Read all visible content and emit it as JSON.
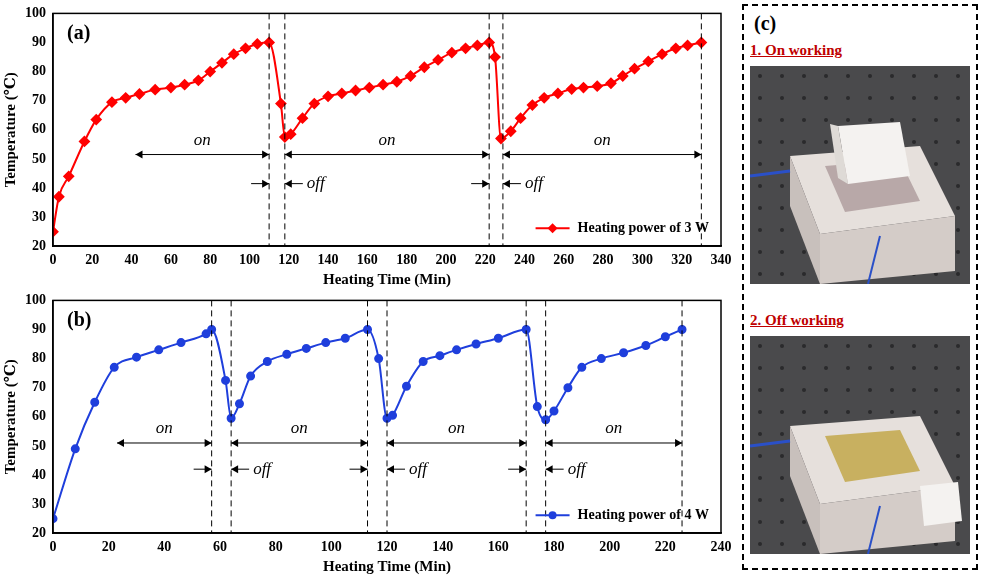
{
  "chart_data": [
    {
      "type": "line",
      "panel_label": "(a)",
      "xlabel": "Heating Time (Min)",
      "ylabel": "Temperature (℃)",
      "xlim": [
        0,
        340
      ],
      "xticks": [
        0,
        20,
        40,
        60,
        80,
        100,
        120,
        140,
        160,
        180,
        200,
        220,
        240,
        260,
        280,
        300,
        320,
        340
      ],
      "ylim": [
        20,
        100
      ],
      "yticks": [
        20,
        30,
        40,
        50,
        60,
        70,
        80,
        90,
        100
      ],
      "grid": false,
      "legend": "lower right",
      "x": [
        0,
        3,
        8,
        16,
        22,
        30,
        37,
        44,
        52,
        60,
        67,
        74,
        80,
        86,
        92,
        98,
        104,
        110,
        116,
        118,
        121,
        127,
        133,
        140,
        147,
        154,
        161,
        168,
        175,
        182,
        189,
        196,
        203,
        210,
        216,
        222,
        225,
        228,
        233,
        238,
        244,
        250,
        257,
        264,
        270,
        277,
        284,
        290,
        296,
        303,
        310,
        317,
        323,
        330
      ],
      "series": [
        {
          "name": "Heating power of 3 W",
          "color": "#ff0000",
          "marker": "diamond",
          "values": [
            25,
            37,
            44,
            56,
            63.5,
            69.5,
            71,
            72.3,
            73.8,
            74.5,
            75.5,
            77,
            80,
            83,
            86,
            88,
            89.5,
            90,
            69,
            57.5,
            58.5,
            64,
            69,
            71.5,
            72.5,
            73.5,
            74.5,
            75.5,
            76.5,
            78.5,
            81.5,
            84,
            86.5,
            88,
            89,
            90,
            85,
            57,
            59.5,
            64,
            68.5,
            71,
            72.5,
            74,
            74.5,
            75,
            76,
            78.5,
            81,
            83.5,
            86,
            88,
            89,
            90
          ]
        }
      ],
      "vlines": [
        110,
        118,
        222,
        229,
        330
      ],
      "annotations": [
        {
          "text": "on",
          "x0": 42,
          "x1": 110,
          "y": 51.5
        },
        {
          "text": "on",
          "x0": 118,
          "x1": 222,
          "y": 51.5
        },
        {
          "text": "on",
          "x0": 229,
          "x1": 330,
          "y": 51.5
        },
        {
          "text": "off",
          "x0": 110,
          "x1": 118,
          "y": 41.5
        },
        {
          "text": "off",
          "x0": 222,
          "x1": 229,
          "y": 41.5
        }
      ]
    },
    {
      "type": "line",
      "panel_label": "(b)",
      "xlabel": "Heating Time (Min)",
      "ylabel": "Temperature (℃)",
      "xlim": [
        0,
        240
      ],
      "xticks": [
        0,
        20,
        40,
        60,
        80,
        100,
        120,
        140,
        160,
        180,
        200,
        220,
        240
      ],
      "ylim": [
        20,
        100
      ],
      "yticks": [
        20,
        30,
        40,
        50,
        60,
        70,
        80,
        90,
        100
      ],
      "grid": false,
      "legend": "lower right",
      "x": [
        0,
        8,
        15,
        22,
        30,
        38,
        46,
        55,
        57,
        62,
        64,
        67,
        71,
        77,
        84,
        91,
        98,
        105,
        113,
        117,
        120,
        122,
        127,
        133,
        139,
        145,
        152,
        160,
        170,
        174,
        177,
        180,
        185,
        190,
        197,
        205,
        213,
        220,
        226
      ],
      "series": [
        {
          "name": "Heating power of 4 W",
          "color": "#1f3fdc",
          "marker": "circle",
          "values": [
            25,
            49,
            65,
            77,
            80.5,
            83,
            85.5,
            88.5,
            90,
            72.5,
            59.5,
            64.5,
            74,
            79,
            81.5,
            83.5,
            85.5,
            87,
            90,
            80,
            59.5,
            60.5,
            70.5,
            79,
            81,
            83,
            85,
            87,
            90,
            63.5,
            59,
            62,
            70,
            77,
            80,
            82,
            84.5,
            87.5,
            90
          ]
        }
      ],
      "vlines": [
        57,
        64,
        113,
        120,
        170,
        177,
        226
      ],
      "annotations": [
        {
          "text": "on",
          "x0": 23,
          "x1": 57,
          "y": 51
        },
        {
          "text": "on",
          "x0": 64,
          "x1": 113,
          "y": 51
        },
        {
          "text": "on",
          "x0": 120,
          "x1": 170,
          "y": 51
        },
        {
          "text": "on",
          "x0": 177,
          "x1": 226,
          "y": 51
        },
        {
          "text": "off",
          "x0": 57,
          "x1": 64,
          "y": 42
        },
        {
          "text": "off",
          "x0": 113,
          "x1": 120,
          "y": 42
        },
        {
          "text": "off",
          "x0": 170,
          "x1": 177,
          "y": 42
        }
      ]
    }
  ],
  "panel_c": {
    "label": "(c)",
    "items": [
      {
        "title": "1. On working"
      },
      {
        "title": "2. Off working"
      }
    ]
  }
}
